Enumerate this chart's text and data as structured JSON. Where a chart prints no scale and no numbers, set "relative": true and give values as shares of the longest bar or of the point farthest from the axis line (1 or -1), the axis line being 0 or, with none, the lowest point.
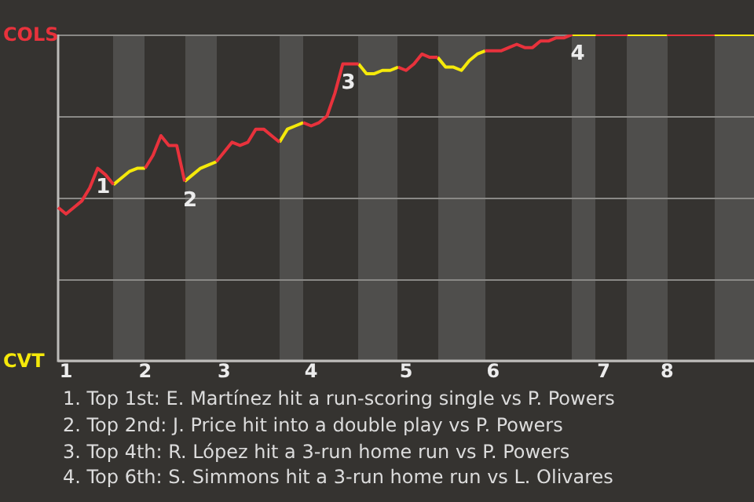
{
  "chart_data": {
    "type": "line",
    "relative": true,
    "grid": "y",
    "legend": false,
    "marker": "none",
    "line_style": "solid",
    "categories": [
      null,
      "1",
      null,
      null,
      null,
      null,
      null,
      null,
      null,
      null,
      null,
      "2",
      null,
      null,
      null,
      null,
      null,
      null,
      null,
      null,
      null,
      "3",
      null,
      null,
      null,
      null,
      null,
      null,
      null,
      null,
      null,
      null,
      "4",
      null,
      null,
      null,
      null,
      null,
      null,
      null,
      null,
      null,
      null,
      null,
      "5",
      null,
      null,
      null,
      null,
      null,
      null,
      null,
      null,
      null,
      null,
      "6",
      null,
      null,
      null,
      null,
      null,
      null,
      null,
      null,
      null,
      null,
      null,
      null,
      null,
      "7",
      null,
      null,
      null,
      null,
      null,
      null,
      null,
      "8",
      null,
      null,
      null,
      null,
      null,
      null,
      null,
      null,
      null,
      null,
      null
    ],
    "series": [
      {
        "color": "#e8323c",
        "values": [
          0.47,
          0.45,
          0.47,
          0.49,
          0.53,
          0.59,
          0.57,
          0.54,
          null,
          null,
          null,
          0.59,
          0.63,
          0.69,
          0.66,
          0.66,
          0.55,
          null,
          null,
          null,
          0.61,
          0.64,
          0.67,
          0.66,
          0.67,
          0.71,
          0.71,
          0.69,
          0.67,
          null,
          null,
          0.73,
          0.72,
          0.73,
          0.75,
          0.82,
          0.91,
          0.91,
          0.91,
          null,
          null,
          null,
          null,
          0.9,
          0.89,
          0.91,
          0.94,
          0.93,
          0.93,
          null,
          null,
          null,
          null,
          null,
          0.95,
          0.95,
          0.95,
          0.96,
          0.97,
          0.96,
          0.96,
          0.98,
          0.98,
          0.99,
          0.99,
          1,
          null,
          null,
          1,
          1,
          1,
          1,
          1,
          null,
          null,
          null,
          null,
          1,
          1,
          1,
          1,
          1,
          1,
          1,
          null,
          null,
          null,
          null,
          null
        ]
      },
      {
        "color": "#f5e90a",
        "values": [
          null,
          null,
          null,
          null,
          null,
          null,
          null,
          0.54,
          0.56,
          0.58,
          0.59,
          0.59,
          null,
          null,
          null,
          null,
          0.55,
          0.57,
          0.59,
          0.6,
          0.61,
          null,
          null,
          null,
          null,
          null,
          null,
          null,
          0.67,
          0.71,
          0.72,
          0.73,
          null,
          null,
          null,
          null,
          null,
          null,
          0.91,
          0.88,
          0.88,
          0.89,
          0.89,
          0.9,
          null,
          null,
          null,
          null,
          0.93,
          0.9,
          0.9,
          0.89,
          0.92,
          0.94,
          0.95,
          null,
          null,
          null,
          null,
          null,
          null,
          null,
          null,
          null,
          null,
          1,
          1,
          1,
          1,
          null,
          null,
          null,
          1,
          1,
          1,
          1,
          1,
          1,
          null,
          null,
          null,
          null,
          null,
          1,
          1,
          1,
          1,
          1,
          1
        ]
      }
    ],
    "annotations": [
      "COLS",
      "CVT",
      {
        "text": "1",
        "y": 0.59
      },
      {
        "text": "2",
        "y": 0.55
      },
      {
        "text": "3",
        "y": 0.91
      },
      {
        "text": "4",
        "y": 1
      },
      "1. Top 1st: E. Martínez hit a run-scoring single vs P. Powers",
      "2. Top 2nd: J. Price hit into a double play vs P. Powers",
      "3. Top 4th: R. López hit a 3-run home run vs P. Powers",
      "4. Top 6th: S. Simmons hit a 3-run home run vs L. Olivares"
    ]
  }
}
